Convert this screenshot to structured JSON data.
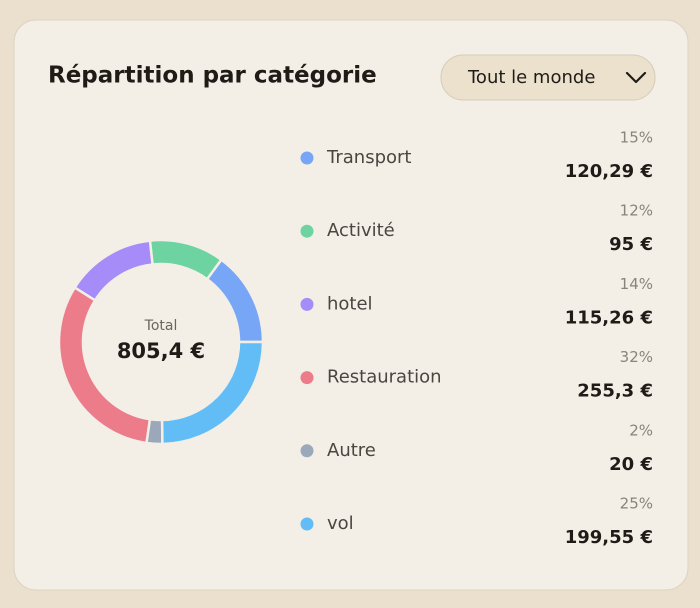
{
  "chart_data": {
    "type": "pie",
    "donut": true,
    "title": "Répartition par catégorie",
    "filter": "Tout le monde",
    "center_label": "Total",
    "center_value": "805,4 €",
    "categories": [
      "Transport",
      "Activité",
      "hotel",
      "Restauration",
      "Autre",
      "vol"
    ],
    "values": [
      120.29,
      95,
      115.26,
      255.3,
      20,
      199.55
    ],
    "value_labels": [
      "120,29 €",
      "95 €",
      "115,26 €",
      "255,3 €",
      "20 €",
      "199,55 €"
    ],
    "share_labels": [
      "15%",
      "12%",
      "14%",
      "32%",
      "2%",
      "25%"
    ],
    "colors": [
      "#78a6f6",
      "#6dd3a0",
      "#a68cf8",
      "#ec7c8a",
      "#9aa8b9",
      "#62bdf6"
    ]
  }
}
